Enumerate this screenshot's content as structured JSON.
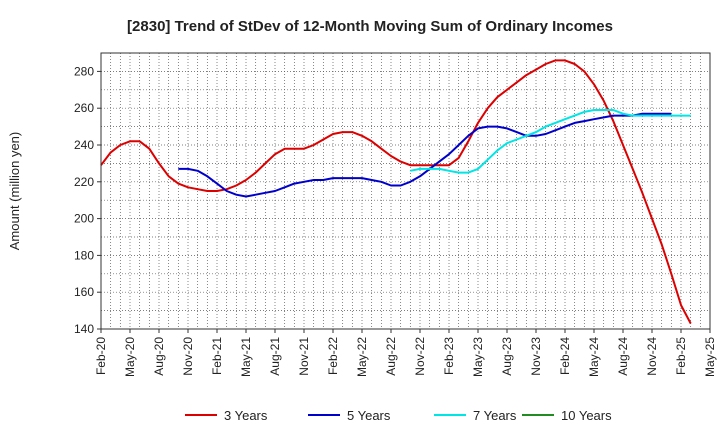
{
  "chart_data": {
    "type": "line",
    "title": "[2830]  Trend of StDev of 12-Month Moving Sum of Ordinary Incomes",
    "xlabel": "",
    "ylabel": "Amount (million yen)",
    "ylim": [
      140,
      290
    ],
    "yticks": [
      140,
      160,
      180,
      200,
      220,
      240,
      260,
      280
    ],
    "grid": true,
    "legend_position": "bottom",
    "x_ticks": [
      "Feb-20",
      "May-20",
      "Aug-20",
      "Nov-20",
      "Feb-21",
      "May-21",
      "Aug-21",
      "Nov-21",
      "Feb-22",
      "May-22",
      "Aug-22",
      "Nov-22",
      "Feb-23",
      "May-23",
      "Aug-23",
      "Nov-23",
      "Feb-24",
      "May-24",
      "Aug-24",
      "Nov-24",
      "Feb-25",
      "May-25"
    ],
    "x_months": [
      "Feb-20",
      "Mar-20",
      "Apr-20",
      "May-20",
      "Jun-20",
      "Jul-20",
      "Aug-20",
      "Sep-20",
      "Oct-20",
      "Nov-20",
      "Dec-20",
      "Jan-21",
      "Feb-21",
      "Mar-21",
      "Apr-21",
      "May-21",
      "Jun-21",
      "Jul-21",
      "Aug-21",
      "Sep-21",
      "Oct-21",
      "Nov-21",
      "Dec-21",
      "Jan-22",
      "Feb-22",
      "Mar-22",
      "Apr-22",
      "May-22",
      "Jun-22",
      "Jul-22",
      "Aug-22",
      "Sep-22",
      "Oct-22",
      "Nov-22",
      "Dec-22",
      "Jan-23",
      "Feb-23",
      "Mar-23",
      "Apr-23",
      "May-23",
      "Jun-23",
      "Jul-23",
      "Aug-23",
      "Sep-23",
      "Oct-23",
      "Nov-23",
      "Dec-23",
      "Jan-24",
      "Feb-24",
      "Mar-24",
      "Apr-24",
      "May-24",
      "Jun-24",
      "Jul-24",
      "Aug-24",
      "Sep-24",
      "Oct-24",
      "Nov-24",
      "Dec-24",
      "Jan-25",
      "Feb-25",
      "Mar-25",
      "Apr-25",
      "May-25"
    ],
    "series": [
      {
        "name": "3 Years",
        "color": "#dd0000",
        "start_index": 0,
        "values": [
          229,
          236,
          240,
          242,
          242,
          238,
          230,
          223,
          219,
          217,
          216,
          215,
          215,
          216,
          218,
          221,
          225,
          230,
          235,
          238,
          238,
          238,
          240,
          243,
          246,
          247,
          247,
          245,
          242,
          238,
          234,
          231,
          229,
          229,
          229,
          229,
          229,
          233,
          242,
          252,
          260,
          266,
          270,
          274,
          278,
          281,
          284,
          286,
          286,
          284,
          280,
          273,
          264,
          253,
          240,
          227,
          214,
          200,
          186,
          170,
          153,
          143
        ]
      },
      {
        "name": "5 Years",
        "color": "#0000cc",
        "start_index": 8,
        "values": [
          227,
          227,
          226,
          223,
          219,
          215,
          213,
          212,
          213,
          214,
          215,
          217,
          219,
          220,
          221,
          221,
          222,
          222,
          222,
          222,
          221,
          220,
          218,
          218,
          220,
          223,
          227,
          231,
          235,
          240,
          245,
          249,
          250,
          250,
          249,
          247,
          245,
          245,
          246,
          248,
          250,
          252,
          253,
          254,
          255,
          256,
          256,
          256,
          257,
          257,
          257,
          257
        ]
      },
      {
        "name": "7 Years",
        "color": "#00e5e5",
        "start_index": 32,
        "values": [
          226,
          227,
          227,
          227,
          226,
          225,
          225,
          227,
          232,
          237,
          241,
          243,
          245,
          247,
          250,
          252,
          254,
          256,
          258,
          259,
          259,
          259,
          257,
          256,
          256,
          256,
          256,
          256,
          256,
          256
        ]
      },
      {
        "name": "10 Years",
        "color": "#228b22",
        "start_index": 0,
        "values": []
      }
    ]
  }
}
